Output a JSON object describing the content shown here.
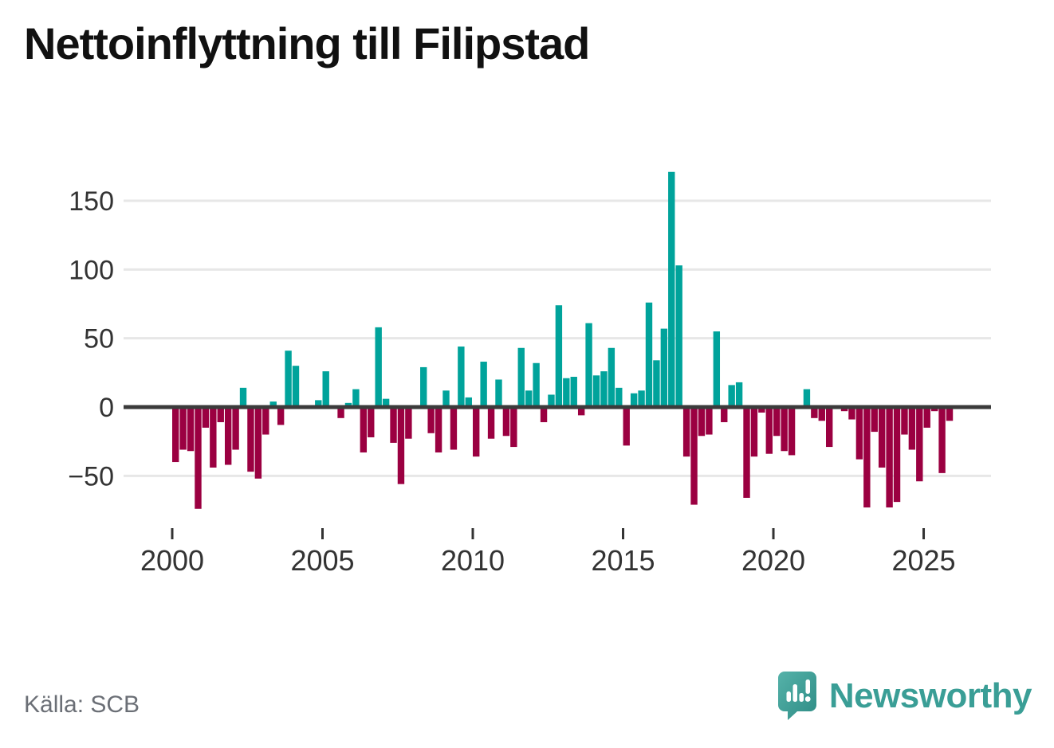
{
  "title": "Nettoinflyttning till Filipstad",
  "source": "Källa: SCB",
  "brand": {
    "name": "Newsworthy"
  },
  "colors": {
    "positive": "#00a39b",
    "negative": "#9b0041",
    "grid": "#e7e7e7",
    "zero_line": "#3b3b3b",
    "axis_text": "#333333",
    "source_text": "#6b6f76",
    "title_text": "#111111",
    "brand_teal": "#3a9e96"
  },
  "chart_data": {
    "type": "bar",
    "title": "Nettoinflyttning till Filipstad",
    "xlabel": "",
    "ylabel": "",
    "frequency": "quarterly",
    "start_period": "2000-Q1",
    "end_period": "2025-Q4",
    "x_tick_years": [
      2000,
      2005,
      2010,
      2015,
      2020,
      2025
    ],
    "y_ticks": [
      150,
      100,
      50,
      0,
      -50
    ],
    "y_tick_labels": [
      "150",
      "100",
      "50",
      "0",
      "−50"
    ],
    "ylim": [
      -85,
      178
    ],
    "grid": true,
    "legend": false,
    "values": [
      -40,
      -31,
      -32,
      -74,
      -15,
      -44,
      -11,
      -42,
      -31,
      14,
      -47,
      -52,
      -20,
      4,
      -13,
      41,
      30,
      0,
      0,
      5,
      26,
      0,
      -8,
      3,
      13,
      -33,
      -22,
      58,
      6,
      -26,
      -56,
      -23,
      0,
      29,
      -19,
      -33,
      12,
      -31,
      44,
      7,
      -36,
      33,
      -23,
      20,
      -21,
      -29,
      43,
      12,
      32,
      -11,
      9,
      74,
      21,
      22,
      -6,
      61,
      23,
      26,
      43,
      14,
      -28,
      10,
      12,
      76,
      34,
      57,
      171,
      103,
      -36,
      -71,
      -21,
      -20,
      55,
      -11,
      16,
      18,
      -66,
      -36,
      -4,
      -34,
      -21,
      -32,
      -35,
      0,
      13,
      -8,
      -10,
      -29,
      0,
      -3,
      -9,
      -38,
      -73,
      -18,
      -44,
      -73,
      -69,
      -20,
      -31,
      -54,
      -15,
      -3,
      -48,
      -10
    ]
  }
}
